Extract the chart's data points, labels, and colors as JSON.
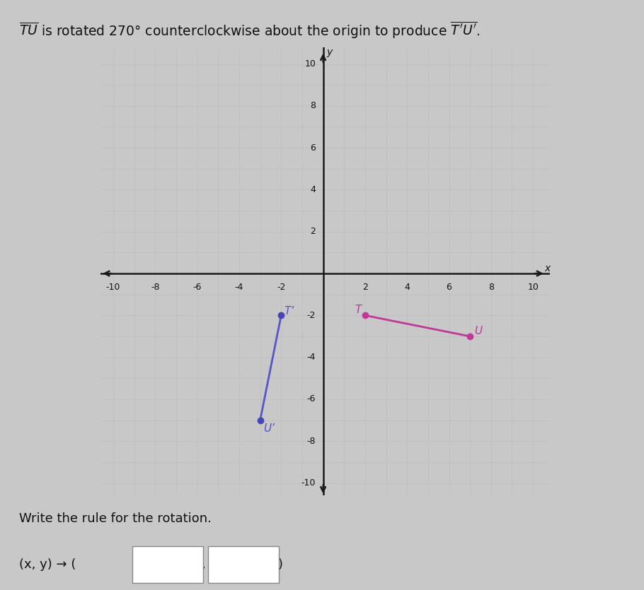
{
  "grid_range": [
    -10,
    10
  ],
  "grid_step": 1,
  "tick_step": 2,
  "T": [
    2,
    -2
  ],
  "U": [
    7,
    -3
  ],
  "Tp": [
    -2,
    -2
  ],
  "Up": [
    -3,
    -7
  ],
  "segment_TU_color": "#c03898",
  "segment_TpUp_color": "#5555cc",
  "dot_TU_color": "#c03898",
  "dot_TpUp_color": "#4444bb",
  "label_T": "T",
  "label_U": "U",
  "label_Tp": "T’",
  "label_Up": "U’",
  "rule_text": "Write the rule for the rotation.",
  "background_color": "#c8c8c8",
  "plot_bg_color": "#d4d4d4",
  "grid_color": "#bbbbbb",
  "xlabel": "x",
  "ylabel": "y",
  "figsize": [
    9.1,
    8.35
  ],
  "dpi": 100
}
